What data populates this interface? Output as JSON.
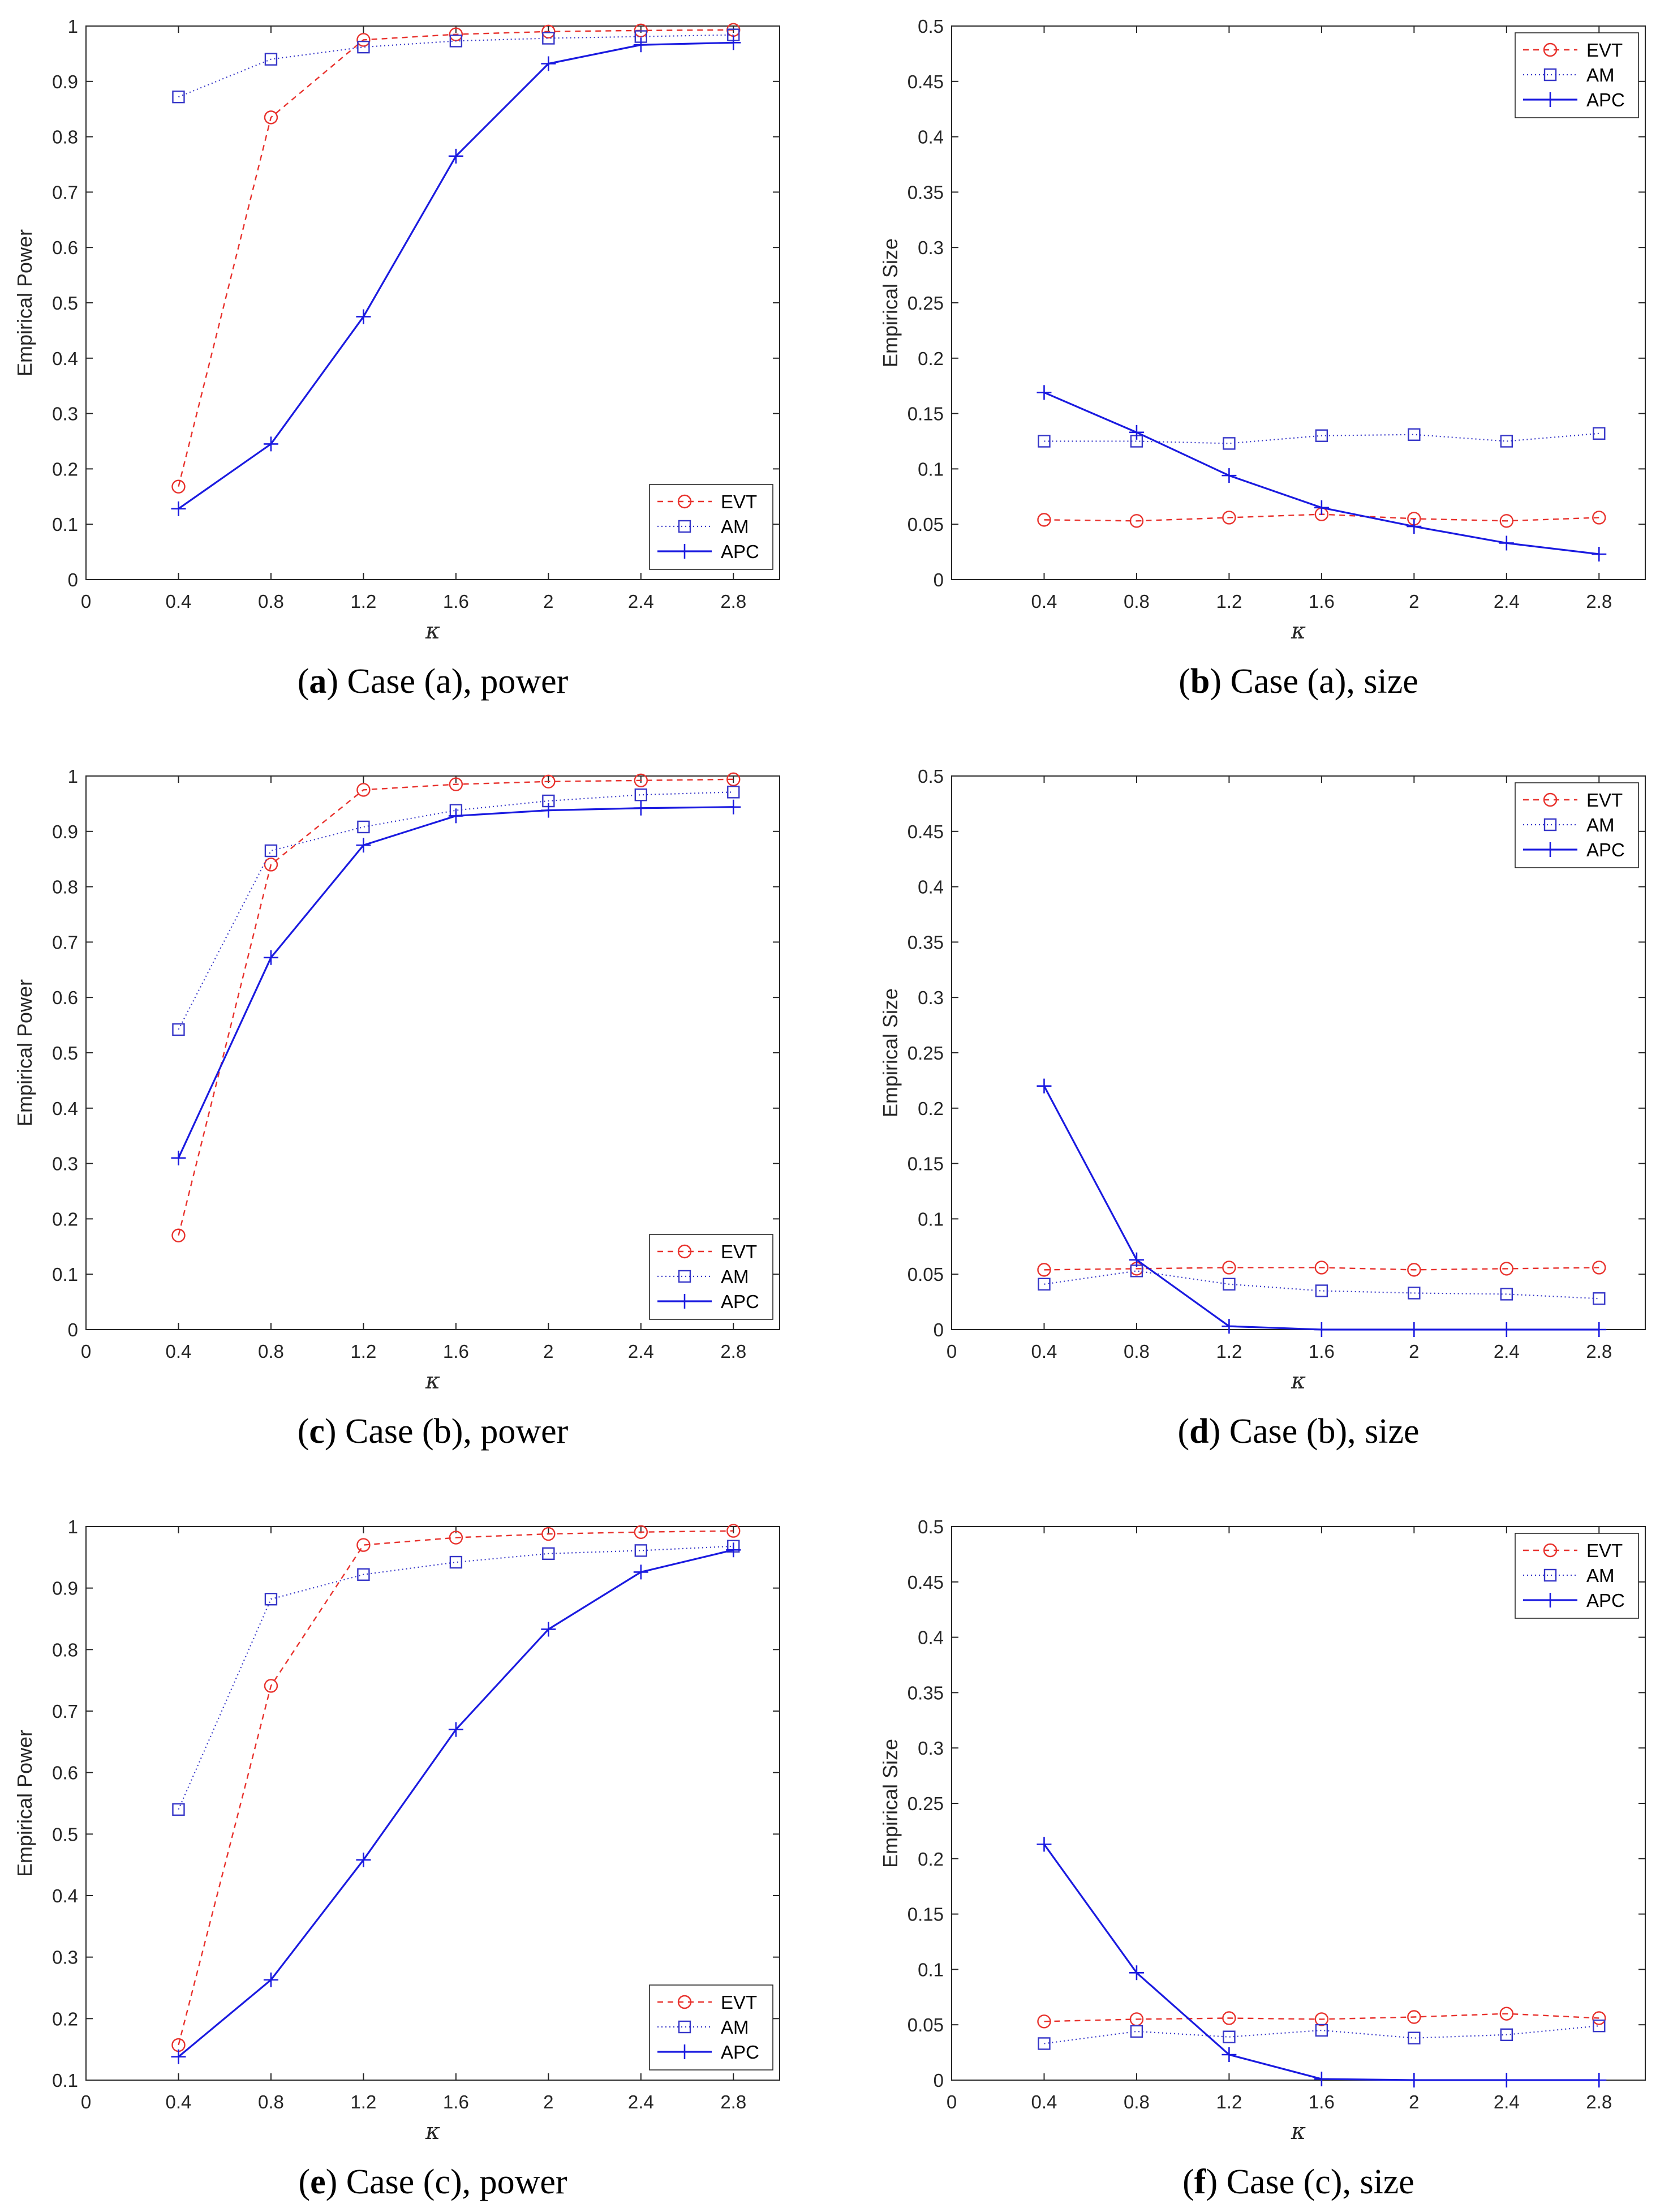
{
  "chart_data": [
    {
      "type": "line",
      "panel": "a",
      "caption_letter": "a",
      "caption_text": "Case (a), power",
      "xlabel": "κ",
      "ylabel": "Empirical Power",
      "xlim": [
        0,
        3
      ],
      "ylim": [
        0,
        1
      ],
      "xticks": [
        "0",
        "0.4",
        "0.8",
        "1.2",
        "1.6",
        "2",
        "2.4",
        "2.8"
      ],
      "yticks": [
        "0",
        "0.1",
        "0.2",
        "0.3",
        "0.4",
        "0.5",
        "0.6",
        "0.7",
        "0.8",
        "0.9",
        "1"
      ],
      "x": [
        0.4,
        0.8,
        1.2,
        1.6,
        2.0,
        2.4,
        2.8
      ],
      "legend_position": "lower-right",
      "series": [
        {
          "name": "EVT",
          "values": [
            0.168,
            0.835,
            0.975,
            0.985,
            0.99,
            0.992,
            0.993
          ]
        },
        {
          "name": "AM",
          "values": [
            0.872,
            0.94,
            0.962,
            0.973,
            0.978,
            0.981,
            0.984
          ]
        },
        {
          "name": "APC",
          "values": [
            0.128,
            0.245,
            0.475,
            0.765,
            0.932,
            0.966,
            0.97
          ]
        }
      ]
    },
    {
      "type": "line",
      "panel": "b",
      "caption_letter": "b",
      "caption_text": "Case (a), size",
      "xlabel": "κ",
      "ylabel": "Empirical Size",
      "xlim": [
        0,
        3
      ],
      "ylim": [
        0,
        0.5
      ],
      "xticks": [
        "0.4",
        "0.8",
        "1.2",
        "1.6",
        "2",
        "2.4",
        "2.8"
      ],
      "yticks": [
        "0",
        "0.05",
        "0.1",
        "0.15",
        "0.2",
        "0.25",
        "0.3",
        "0.35",
        "0.4",
        "0.45",
        "0.5"
      ],
      "x": [
        0.4,
        0.8,
        1.2,
        1.6,
        2.0,
        2.4,
        2.8
      ],
      "legend_position": "top-right",
      "series": [
        {
          "name": "EVT",
          "values": [
            0.054,
            0.053,
            0.056,
            0.059,
            0.055,
            0.053,
            0.056
          ]
        },
        {
          "name": "AM",
          "values": [
            0.125,
            0.125,
            0.123,
            0.13,
            0.131,
            0.125,
            0.132
          ]
        },
        {
          "name": "APC",
          "values": [
            0.169,
            0.133,
            0.094,
            0.065,
            0.048,
            0.033,
            0.023
          ]
        }
      ]
    },
    {
      "type": "line",
      "panel": "c",
      "caption_letter": "c",
      "caption_text": "Case (b), power",
      "xlabel": "κ",
      "ylabel": "Empirical Power",
      "xlim": [
        0,
        3
      ],
      "ylim": [
        0,
        1
      ],
      "xticks": [
        "0",
        "0.4",
        "0.8",
        "1.2",
        "1.6",
        "2",
        "2.4",
        "2.8"
      ],
      "yticks": [
        "0",
        "0.1",
        "0.2",
        "0.3",
        "0.4",
        "0.5",
        "0.6",
        "0.7",
        "0.8",
        "0.9",
        "1"
      ],
      "x": [
        0.4,
        0.8,
        1.2,
        1.6,
        2.0,
        2.4,
        2.8
      ],
      "legend_position": "lower-right",
      "series": [
        {
          "name": "EVT",
          "values": [
            0.17,
            0.84,
            0.975,
            0.985,
            0.99,
            0.992,
            0.994
          ]
        },
        {
          "name": "AM",
          "values": [
            0.542,
            0.865,
            0.908,
            0.938,
            0.955,
            0.966,
            0.971
          ]
        },
        {
          "name": "APC",
          "values": [
            0.31,
            0.672,
            0.875,
            0.928,
            0.938,
            0.942,
            0.944
          ]
        }
      ]
    },
    {
      "type": "line",
      "panel": "d",
      "caption_letter": "d",
      "caption_text": "Case (b), size",
      "xlabel": "κ",
      "ylabel": "Empirical Size",
      "xlim": [
        0,
        3
      ],
      "ylim": [
        0,
        0.5
      ],
      "xticks": [
        "0",
        "0.4",
        "0.8",
        "1.2",
        "1.6",
        "2",
        "2.4",
        "2.8"
      ],
      "yticks": [
        "0",
        "0.05",
        "0.1",
        "0.15",
        "0.2",
        "0.25",
        "0.3",
        "0.35",
        "0.4",
        "0.45",
        "0.5"
      ],
      "x": [
        0.4,
        0.8,
        1.2,
        1.6,
        2.0,
        2.4,
        2.8
      ],
      "legend_position": "top-right",
      "series": [
        {
          "name": "EVT",
          "values": [
            0.054,
            0.055,
            0.056,
            0.056,
            0.054,
            0.055,
            0.056
          ]
        },
        {
          "name": "AM",
          "values": [
            0.041,
            0.053,
            0.041,
            0.035,
            0.033,
            0.032,
            0.028
          ]
        },
        {
          "name": "APC",
          "values": [
            0.22,
            0.063,
            0.003,
            0.0,
            0.0,
            0.0,
            0.0
          ]
        }
      ]
    },
    {
      "type": "line",
      "panel": "e",
      "caption_letter": "e",
      "caption_text": "Case (c), power",
      "xlabel": "κ",
      "ylabel": "Empirical Power",
      "xlim": [
        0,
        3
      ],
      "ylim": [
        0.1,
        1
      ],
      "xticks": [
        "0",
        "0.4",
        "0.8",
        "1.2",
        "1.6",
        "2",
        "2.4",
        "2.8"
      ],
      "yticks": [
        "0.1",
        "0.2",
        "0.3",
        "0.4",
        "0.5",
        "0.6",
        "0.7",
        "0.8",
        "0.9",
        "1"
      ],
      "x": [
        0.4,
        0.8,
        1.2,
        1.6,
        2.0,
        2.4,
        2.8
      ],
      "legend_position": "lower-right",
      "series": [
        {
          "name": "EVT",
          "values": [
            0.157,
            0.741,
            0.97,
            0.982,
            0.988,
            0.991,
            0.993
          ]
        },
        {
          "name": "AM",
          "values": [
            0.54,
            0.882,
            0.922,
            0.942,
            0.956,
            0.961,
            0.968
          ]
        },
        {
          "name": "APC",
          "values": [
            0.138,
            0.263,
            0.458,
            0.67,
            0.833,
            0.926,
            0.962
          ]
        }
      ]
    },
    {
      "type": "line",
      "panel": "f",
      "caption_letter": "f",
      "caption_text": "Case (c), size",
      "xlabel": "κ",
      "ylabel": "Empirical Size",
      "xlim": [
        0,
        3
      ],
      "ylim": [
        0,
        0.5
      ],
      "xticks": [
        "0",
        "0.4",
        "0.8",
        "1.2",
        "1.6",
        "2",
        "2.4",
        "2.8"
      ],
      "yticks": [
        "0",
        "0.05",
        "0.1",
        "0.15",
        "0.2",
        "0.25",
        "0.3",
        "0.35",
        "0.4",
        "0.45",
        "0.5"
      ],
      "x": [
        0.4,
        0.8,
        1.2,
        1.6,
        2.0,
        2.4,
        2.8
      ],
      "legend_position": "top-right",
      "series": [
        {
          "name": "EVT",
          "values": [
            0.053,
            0.055,
            0.056,
            0.055,
            0.057,
            0.06,
            0.056
          ]
        },
        {
          "name": "AM",
          "values": [
            0.033,
            0.044,
            0.039,
            0.045,
            0.038,
            0.041,
            0.049
          ]
        },
        {
          "name": "APC",
          "values": [
            0.213,
            0.097,
            0.023,
            0.001,
            0.0,
            0.0,
            0.0
          ]
        }
      ]
    }
  ],
  "colors": {
    "EVT": "#e8312c",
    "AM": "#3636c8",
    "APC": "#1a1ae0",
    "axis": "#262626"
  }
}
